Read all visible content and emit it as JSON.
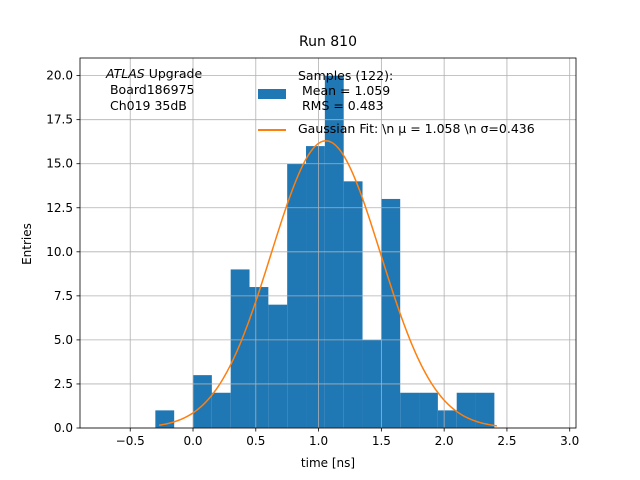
{
  "chart_data": {
    "type": "bar",
    "title": "Run 810",
    "xlabel": "time [ns]",
    "ylabel": "Entries",
    "xlim": [
      -0.9,
      3.05
    ],
    "ylim": [
      0,
      21
    ],
    "grid": true,
    "xticks": [
      "-0.5",
      "0.0",
      "0.5",
      "1.0",
      "1.5",
      "2.0",
      "2.5",
      "3.0"
    ],
    "yticks": [
      "0.0",
      "2.5",
      "5.0",
      "7.5",
      "10.0",
      "12.5",
      "15.0",
      "17.5",
      "20.0"
    ],
    "bin_edges": [
      -0.3,
      -0.15,
      0.0,
      0.15,
      0.3,
      0.45,
      0.6,
      0.75,
      0.9,
      1.05,
      1.2,
      1.35,
      1.5,
      1.65,
      1.8,
      1.95,
      2.1,
      2.25,
      2.4
    ],
    "counts": [
      1,
      0,
      3,
      2,
      9,
      8,
      7,
      15,
      16,
      20,
      14,
      5,
      13,
      2,
      2,
      1,
      2,
      2
    ],
    "fit": {
      "type": "gaussian",
      "mu": 1.058,
      "sigma": 0.436,
      "amplitude": 16.3,
      "x_range": [
        -0.27,
        2.42
      ]
    },
    "colors": {
      "bars": "#1f77b4",
      "fit": "#ff7f0e"
    },
    "annotation": {
      "lines": [
        "ATLAS Upgrade",
        " Board186975",
        " Ch019 35dB"
      ]
    },
    "legend": {
      "location": "top",
      "samples": "Samples (122):\n Mean = 1.059\n RMS = 0.483",
      "fit": "Gaussian Fit: \\n μ = 1.058 \\n σ=0.436"
    }
  }
}
